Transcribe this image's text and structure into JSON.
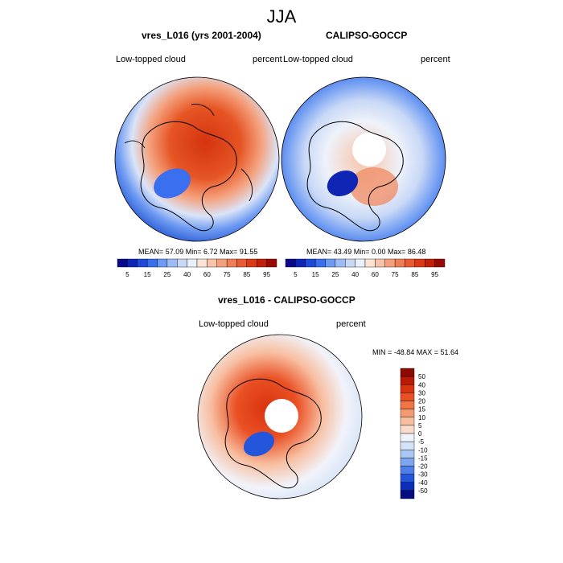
{
  "figure": {
    "title": "JJA",
    "colors": {
      "ocean_blue": "#2f5fd8",
      "warm_red": "#e0401c",
      "coast": "#000000"
    }
  },
  "chart_data": [
    {
      "type": "heatmap",
      "projection": "north-polar-stereographic",
      "title": "vres_L016 (yrs 2001-2004)",
      "left_label": "Low-topped cloud",
      "right_label": "percent",
      "stats": {
        "mean": "57.09",
        "min": "6.72",
        "max": "91.55"
      },
      "stats_text": "MEAN=  57.09  Min=   6.72  Max=  91.55",
      "colorbar": {
        "labels": [
          "5",
          "15",
          "25",
          "40",
          "60",
          "75",
          "85",
          "95"
        ],
        "colors": [
          "#08088a",
          "#0f26b4",
          "#1f4ad8",
          "#3a6ff0",
          "#6d9af2",
          "#9ebcf4",
          "#c8d8f6",
          "#eaf0fa",
          "#fbe3d6",
          "#f8c3a8",
          "#f4a07c",
          "#f07e55",
          "#ea5a32",
          "#dc3a17",
          "#c02008",
          "#960a00"
        ]
      }
    },
    {
      "type": "heatmap",
      "projection": "north-polar-stereographic",
      "title": "CALIPSO-GOCCP",
      "left_label": "Low-topped cloud",
      "right_label": "percent",
      "stats": {
        "mean": "43.49",
        "min": "0.00",
        "max": "86.48"
      },
      "stats_text": "MEAN=  43.49  Min=   0.00  Max=  86.48",
      "colorbar": {
        "labels": [
          "5",
          "15",
          "25",
          "40",
          "60",
          "75",
          "85",
          "95"
        ],
        "colors": [
          "#08088a",
          "#0f26b4",
          "#1f4ad8",
          "#3a6ff0",
          "#6d9af2",
          "#9ebcf4",
          "#c8d8f6",
          "#eaf0fa",
          "#fbe3d6",
          "#f8c3a8",
          "#f4a07c",
          "#f07e55",
          "#ea5a32",
          "#dc3a17",
          "#c02008",
          "#960a00"
        ]
      }
    },
    {
      "type": "heatmap",
      "projection": "north-polar-stereographic",
      "title": "vres_L016 - CALIPSO-GOCCP",
      "left_label": "Low-topped cloud",
      "right_label": "percent",
      "stats": {
        "min": "-48.84",
        "max": "51.64"
      },
      "stats_text": "MIN = -48.84 MAX =  51.64",
      "colorbar": {
        "orientation": "vertical",
        "labels": [
          "50",
          "40",
          "30",
          "20",
          "15",
          "10",
          "5",
          "0",
          "-5",
          "-10",
          "-15",
          "-20",
          "-30",
          "-40",
          "-50"
        ],
        "colors": [
          "#8c0a00",
          "#b81a06",
          "#d8340f",
          "#ea5024",
          "#f17545",
          "#f49a70",
          "#f7bea0",
          "#fadccc",
          "#f1f3fa",
          "#d4e2f6",
          "#aac6f2",
          "#7ea6ee",
          "#4e7eea",
          "#2456dc",
          "#0c2eb8",
          "#070c80"
        ]
      }
    }
  ]
}
